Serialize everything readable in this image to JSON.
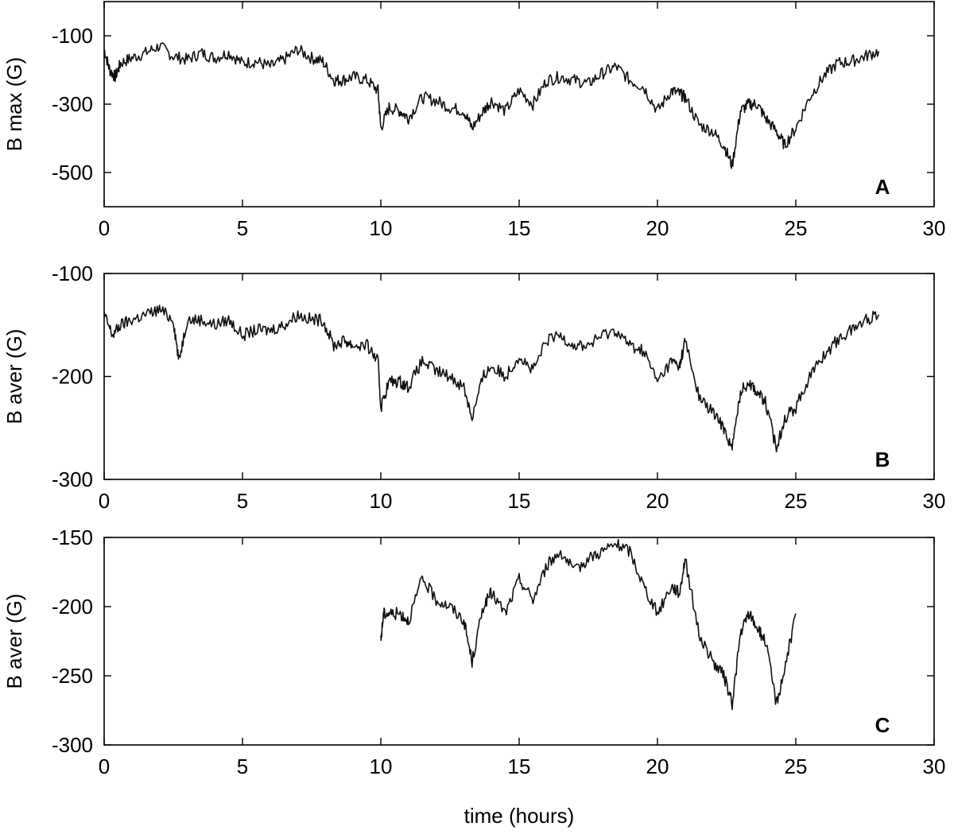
{
  "chart_data": [
    {
      "type": "line",
      "panel_label": "A",
      "xlabel": "",
      "ylabel": "B max (G)",
      "xlim": [
        0,
        30
      ],
      "ylim": [
        -600,
        0
      ],
      "xticks": [
        0,
        5,
        10,
        15,
        20,
        25,
        30
      ],
      "yticks": [
        -100,
        -300,
        -500
      ],
      "grid": false,
      "series": [
        {
          "x": [
            0,
            0.2,
            0.4,
            0.6,
            1.0,
            1.5,
            2.0,
            2.5,
            3.0,
            3.5,
            4.0,
            4.5,
            5.0,
            5.5,
            6.0,
            6.5,
            7.0,
            7.5,
            7.9,
            8.3,
            8.6,
            9.0,
            9.5,
            9.9,
            10.0,
            10.3,
            10.7,
            11.0,
            11.5,
            12.0,
            12.5,
            13.0,
            13.3,
            13.7,
            14.0,
            14.5,
            15.0,
            15.5,
            16.0,
            16.5,
            17.0,
            17.5,
            18.0,
            18.5,
            19.0,
            19.5,
            20.0,
            20.5,
            20.8,
            21.0,
            21.5,
            22.0,
            22.4,
            22.7,
            23.0,
            23.3,
            23.6,
            23.9,
            24.3,
            24.6,
            25.0,
            25.5,
            26.0,
            26.5,
            27.0,
            27.5,
            28.0
          ],
          "y": [
            -140,
            -200,
            -220,
            -180,
            -165,
            -150,
            -130,
            -160,
            -170,
            -150,
            -165,
            -150,
            -180,
            -175,
            -190,
            -170,
            -140,
            -165,
            -175,
            -230,
            -230,
            -220,
            -230,
            -260,
            -370,
            -310,
            -320,
            -340,
            -280,
            -290,
            -310,
            -320,
            -370,
            -320,
            -290,
            -320,
            -260,
            -300,
            -230,
            -220,
            -230,
            -240,
            -210,
            -190,
            -230,
            -250,
            -320,
            -260,
            -270,
            -280,
            -360,
            -380,
            -420,
            -480,
            -320,
            -300,
            -300,
            -340,
            -380,
            -420,
            -370,
            -280,
            -220,
            -180,
            -175,
            -160,
            -145
          ]
        }
      ]
    },
    {
      "type": "line",
      "panel_label": "B",
      "xlabel": "",
      "ylabel": "B aver (G)",
      "xlim": [
        0,
        30
      ],
      "ylim": [
        -300,
        -100
      ],
      "xticks": [
        0,
        5,
        10,
        15,
        20,
        25,
        30
      ],
      "yticks": [
        -100,
        -200,
        -300
      ],
      "grid": false,
      "series": [
        {
          "x": [
            0,
            0.3,
            0.6,
            1.0,
            1.5,
            2.0,
            2.5,
            2.7,
            3.0,
            3.5,
            4.0,
            4.5,
            5.0,
            5.5,
            6.0,
            6.5,
            7.0,
            7.5,
            7.9,
            8.3,
            8.7,
            9.0,
            9.5,
            9.9,
            10.0,
            10.3,
            10.7,
            11.0,
            11.5,
            12.0,
            12.5,
            13.0,
            13.3,
            13.7,
            14.0,
            14.5,
            15.0,
            15.5,
            16.0,
            16.5,
            17.0,
            17.5,
            18.0,
            18.5,
            19.0,
            19.5,
            20.0,
            20.5,
            20.8,
            21.0,
            21.5,
            22.0,
            22.4,
            22.7,
            23.0,
            23.3,
            23.6,
            23.9,
            24.3,
            24.6,
            25.0,
            25.5,
            26.0,
            26.5,
            27.0,
            27.5,
            28.0
          ],
          "y": [
            -140,
            -160,
            -150,
            -145,
            -140,
            -135,
            -145,
            -185,
            -145,
            -145,
            -150,
            -145,
            -160,
            -155,
            -155,
            -150,
            -140,
            -145,
            -145,
            -170,
            -165,
            -170,
            -170,
            -185,
            -230,
            -205,
            -205,
            -210,
            -185,
            -195,
            -200,
            -210,
            -240,
            -200,
            -190,
            -200,
            -180,
            -195,
            -165,
            -160,
            -170,
            -170,
            -160,
            -155,
            -170,
            -175,
            -205,
            -185,
            -190,
            -165,
            -220,
            -235,
            -250,
            -270,
            -215,
            -205,
            -215,
            -225,
            -270,
            -240,
            -230,
            -200,
            -180,
            -165,
            -155,
            -145,
            -140
          ]
        }
      ]
    },
    {
      "type": "line",
      "panel_label": "C",
      "xlabel": "time (hours)",
      "ylabel": "B aver (G)",
      "xlim": [
        0,
        30
      ],
      "ylim": [
        -300,
        -150
      ],
      "xticks": [
        0,
        5,
        10,
        15,
        20,
        25,
        30
      ],
      "yticks": [
        -150,
        -200,
        -250,
        -300
      ],
      "grid": false,
      "series": [
        {
          "x": [
            10.0,
            10.1,
            10.3,
            10.7,
            11.0,
            11.5,
            12.0,
            12.5,
            13.0,
            13.3,
            13.7,
            14.0,
            14.5,
            15.0,
            15.5,
            16.0,
            16.5,
            17.0,
            17.5,
            18.0,
            18.5,
            19.0,
            19.5,
            20.0,
            20.5,
            20.8,
            21.0,
            21.5,
            22.0,
            22.4,
            22.7,
            23.0,
            23.3,
            23.6,
            23.9,
            24.3,
            24.6,
            25.0
          ],
          "y": [
            -225,
            -205,
            -205,
            -205,
            -210,
            -180,
            -195,
            -200,
            -210,
            -240,
            -200,
            -190,
            -205,
            -180,
            -195,
            -170,
            -160,
            -175,
            -165,
            -160,
            -155,
            -160,
            -185,
            -205,
            -185,
            -190,
            -165,
            -220,
            -240,
            -250,
            -270,
            -220,
            -205,
            -215,
            -225,
            -270,
            -245,
            -205
          ]
        }
      ]
    }
  ]
}
